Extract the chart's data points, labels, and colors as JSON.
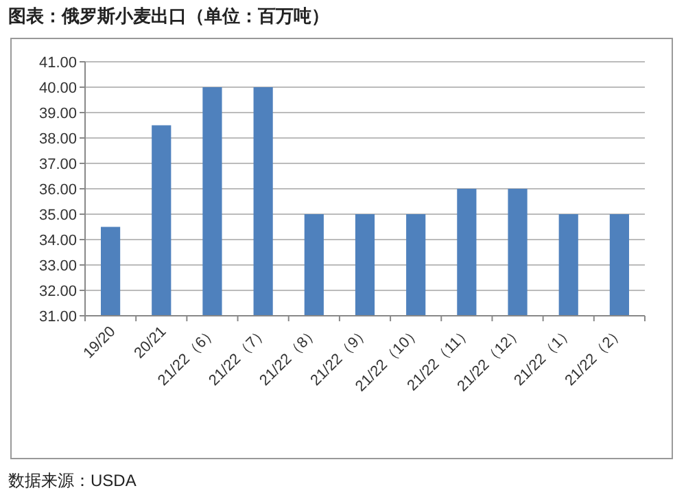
{
  "chart_data": {
    "type": "bar",
    "title": "图表：俄罗斯小麦出口（单位：百万吨）",
    "categories": [
      "19/20",
      "20/21",
      "21/22（6）",
      "21/22（7）",
      "21/22（8）",
      "21/22（9）",
      "21/22（10）",
      "21/22（11）",
      "21/22（12）",
      "21/22（1）",
      "21/22（2）"
    ],
    "values": [
      34.5,
      38.5,
      40,
      40,
      35,
      35,
      35,
      36,
      36,
      35,
      35
    ],
    "color": "#4f81bd",
    "ylim": [
      31,
      41
    ],
    "yticks": [
      {
        "value": 31,
        "label": "31.00"
      },
      {
        "value": 32,
        "label": "32.00"
      },
      {
        "value": 33,
        "label": "33.00"
      },
      {
        "value": 34,
        "label": "34.00"
      },
      {
        "value": 35,
        "label": "35.00"
      },
      {
        "value": 36,
        "label": "36.00"
      },
      {
        "value": 37,
        "label": "37.00"
      },
      {
        "value": 38,
        "label": "38.00"
      },
      {
        "value": 39,
        "label": "39.00"
      },
      {
        "value": 40,
        "label": "40.00"
      },
      {
        "value": 41,
        "label": "41.00"
      }
    ],
    "grid": "y",
    "annotations": [
      "数据来源：USDA"
    ]
  }
}
